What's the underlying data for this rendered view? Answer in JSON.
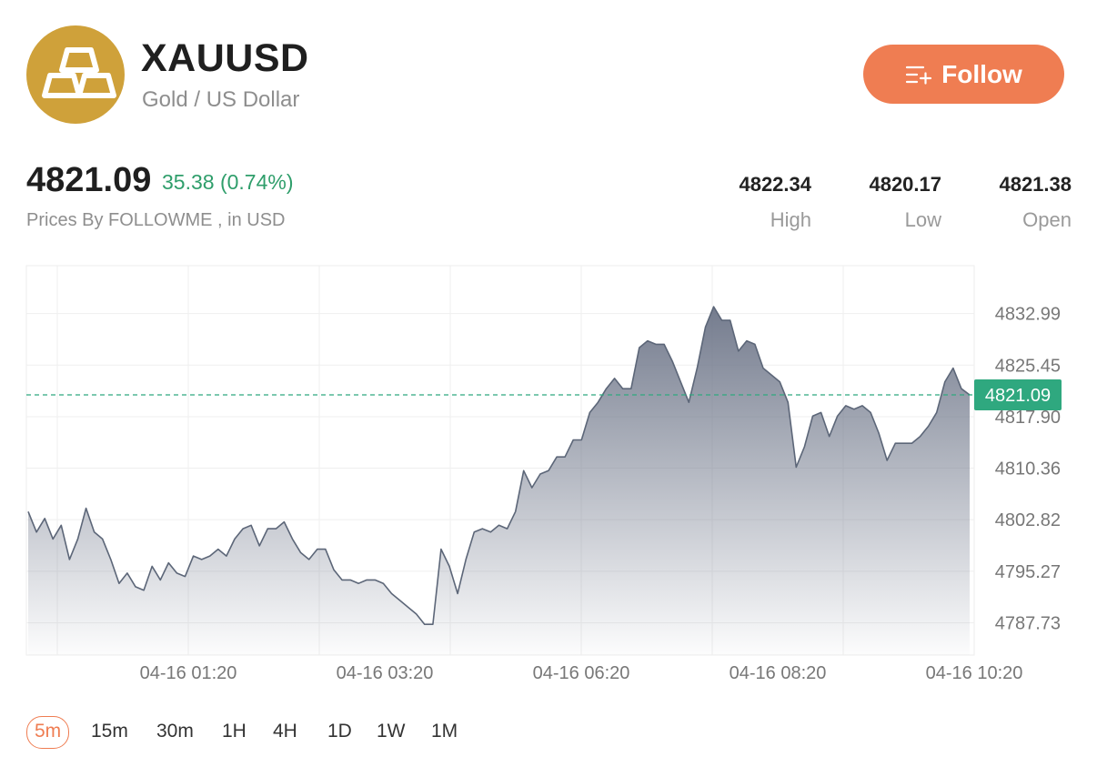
{
  "header": {
    "symbol": "XAUUSD",
    "name": "Gold / US Dollar",
    "follow_label": "Follow"
  },
  "quote": {
    "price": "4821.09",
    "change": "35.38 (0.74%)",
    "source": "Prices By FOLLOWME , in USD",
    "stats": [
      {
        "value": "4822.34",
        "label": "High"
      },
      {
        "value": "4820.17",
        "label": "Low"
      },
      {
        "value": "4821.38",
        "label": "Open"
      }
    ]
  },
  "colors": {
    "accent": "#ef7d52",
    "logo": "#cfa13a",
    "positive": "#2f9e6b",
    "price_tag": "#2fa87f",
    "line": "#5c6678"
  },
  "timeframes": [
    "5m",
    "15m",
    "30m",
    "1H",
    "4H",
    "1D",
    "1W",
    "1M"
  ],
  "active_timeframe": "5m",
  "chart_data": {
    "type": "area",
    "y_ticks": [
      "4832.99",
      "4825.45",
      "4817.90",
      "4810.36",
      "4802.82",
      "4795.27",
      "4787.73"
    ],
    "x_ticks": [
      "04-16 01:20",
      "04-16 03:20",
      "04-16 06:20",
      "04-16 08:20",
      "04-16 10:20"
    ],
    "current_price_label": "4821.09",
    "current_price": 4821.09,
    "y_range": [
      4783,
      4840
    ],
    "values": [
      4804,
      4801,
      4803,
      4800,
      4802,
      4797,
      4800,
      4804.5,
      4801,
      4800,
      4797,
      4793.5,
      4795,
      4793,
      4792.5,
      4796,
      4794,
      4796.5,
      4795,
      4794.5,
      4797.5,
      4797,
      4797.5,
      4798.5,
      4797.5,
      4800,
      4801.5,
      4802,
      4799,
      4801.5,
      4801.5,
      4802.5,
      4800,
      4798,
      4797,
      4798.5,
      4798.5,
      4795.5,
      4794,
      4794,
      4793.5,
      4794,
      4794,
      4793.5,
      4792,
      4791,
      4790,
      4789,
      4787.5,
      4787.5,
      4798.5,
      4796,
      4792,
      4797,
      4801,
      4801.5,
      4801,
      4802,
      4801.5,
      4804,
      4810,
      4807.5,
      4809.5,
      4810,
      4812,
      4812,
      4814.5,
      4814.5,
      4818.5,
      4820,
      4822,
      4823.5,
      4822,
      4822,
      4828,
      4829,
      4828.5,
      4828.5,
      4826,
      4823,
      4820,
      4825,
      4831,
      4834,
      4832,
      4832,
      4827.5,
      4829,
      4828.5,
      4825,
      4824,
      4823,
      4820,
      4810.5,
      4813.5,
      4818,
      4818.5,
      4815,
      4818,
      4819.5,
      4819,
      4819.5,
      4818.5,
      4815.5,
      4811.5,
      4814,
      4814,
      4814,
      4815,
      4816.5,
      4818.5,
      4823,
      4825,
      4822,
      4821.09
    ],
    "grid": true
  }
}
